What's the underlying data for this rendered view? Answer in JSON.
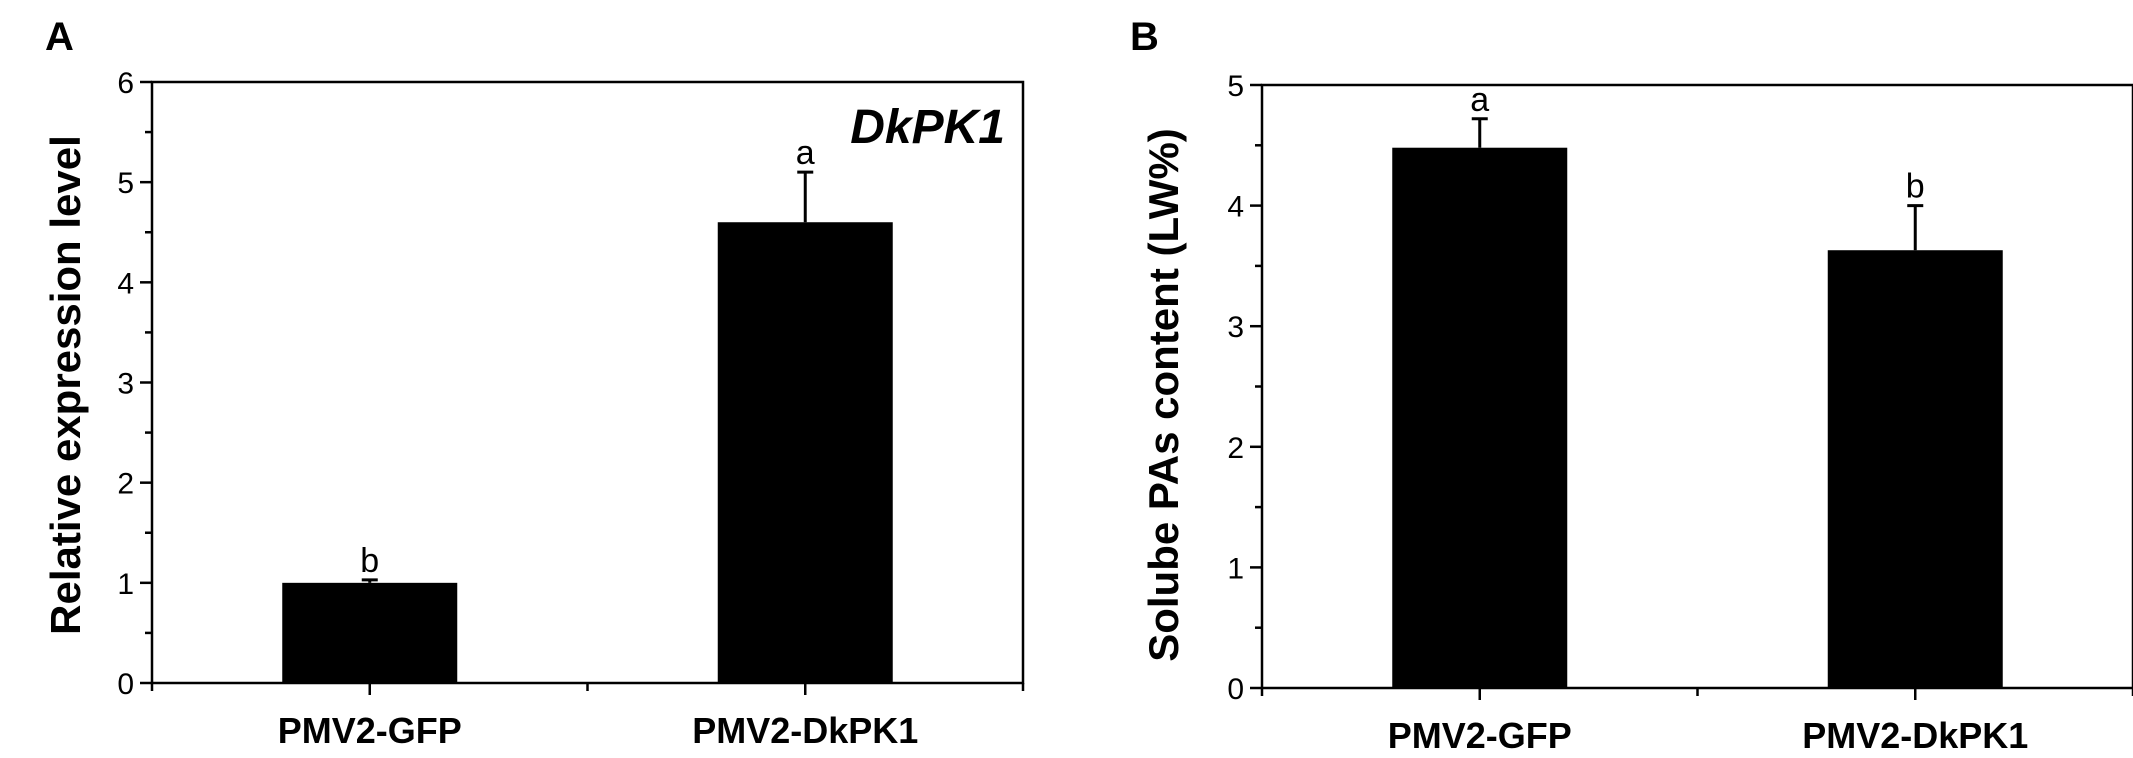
{
  "chart_data": [
    {
      "type": "bar",
      "panel": "A",
      "title": "",
      "annotation": "DkPK1",
      "xlabel": "",
      "ylabel": "Relative expression level",
      "ylim": [
        0,
        6
      ],
      "yticks": [
        0,
        1,
        2,
        3,
        4,
        5,
        6
      ],
      "categories": [
        "PMV2-GFP",
        "PMV2-DkPK1"
      ],
      "values": [
        1.0,
        4.6
      ],
      "errors": [
        0.03,
        0.5
      ],
      "significance": [
        "b",
        "a"
      ],
      "bar_color": "#000000"
    },
    {
      "type": "bar",
      "panel": "B",
      "title": "",
      "xlabel": "",
      "ylabel": "Solube PAs content (LW%)",
      "ylim": [
        0,
        5
      ],
      "yticks": [
        0,
        1,
        2,
        3,
        4,
        5
      ],
      "categories": [
        "PMV2-GFP",
        "PMV2-DkPK1"
      ],
      "values": [
        4.48,
        3.63
      ],
      "errors": [
        0.24,
        0.37
      ],
      "significance": [
        "a",
        "b"
      ],
      "bar_color": "#000000"
    }
  ]
}
